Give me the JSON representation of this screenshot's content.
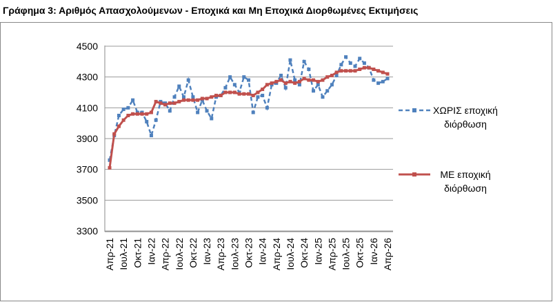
{
  "chart_data": {
    "type": "line",
    "title": "Γράφημα 3: Αριθμός Απασχολούμενων - Εποχικά και Μη Εποχικά Διορθωμένες Εκτιμήσεις",
    "categories": [
      "Απρ-21",
      null,
      null,
      "Ιουλ-21",
      null,
      null,
      "Οκτ-21",
      null,
      null,
      "Ιαν-22",
      null,
      null,
      "Απρ-22",
      null,
      null,
      "Ιουλ-22",
      null,
      null,
      "Οκτ-22",
      null,
      null,
      "Ιαν-23",
      null,
      null,
      "Απρ-23",
      null,
      null,
      "Ιουλ-23",
      null,
      null,
      "Οκτ-23",
      null,
      null,
      "Ιαν-24",
      null,
      null,
      "Απρ-24",
      null,
      null,
      "Ιουλ-24",
      null,
      null,
      "Οκτ-24",
      null,
      null,
      "Ιαν-25",
      null,
      null,
      "Απρ-25",
      null,
      null,
      "Ιουλ-25",
      null,
      null,
      "Οκτ-25",
      null,
      null,
      "Ιαν-26",
      null,
      null,
      "Απρ-26"
    ],
    "series": [
      {
        "name": "ΧΩΡΙΣ εποχική διόρθωση",
        "color": "#4f81bd",
        "dashed": true,
        "values": [
          3760,
          3920,
          4050,
          4090,
          4100,
          4150,
          4070,
          4070,
          4010,
          3920,
          4020,
          4140,
          4130,
          4080,
          4170,
          4240,
          4170,
          4280,
          4170,
          4070,
          4150,
          4080,
          4030,
          4170,
          4180,
          4230,
          4300,
          4250,
          4200,
          4300,
          4280,
          4070,
          4170,
          4180,
          4100,
          4250,
          4260,
          4310,
          4230,
          4410,
          4280,
          4250,
          4400,
          4350,
          4210,
          4250,
          4170,
          4210,
          4250,
          4310,
          4380,
          4430,
          4390,
          4370,
          4420,
          4390,
          4360,
          4280,
          4260,
          4270,
          4290
        ]
      },
      {
        "name": "ΜΕ εποχική διόρθωση",
        "color": "#c0504d",
        "dashed": false,
        "values": [
          3710,
          3930,
          3980,
          4020,
          4050,
          4060,
          4060,
          4060,
          4060,
          4070,
          4140,
          4130,
          4120,
          4130,
          4130,
          4140,
          4150,
          4150,
          4150,
          4150,
          4160,
          4160,
          4170,
          4180,
          4180,
          4200,
          4200,
          4200,
          4190,
          4190,
          4190,
          4180,
          4200,
          4220,
          4250,
          4260,
          4270,
          4280,
          4260,
          4270,
          4260,
          4270,
          4290,
          4280,
          4280,
          4270,
          4280,
          4300,
          4310,
          4330,
          4340,
          4340,
          4340,
          4340,
          4350,
          4360,
          4360,
          4350,
          4340,
          4330,
          4320
        ]
      }
    ],
    "ylim": [
      3300,
      4500
    ],
    "yticks": [
      3300,
      3500,
      3700,
      3900,
      4100,
      4300,
      4500
    ],
    "grid": true,
    "legend": "right"
  }
}
